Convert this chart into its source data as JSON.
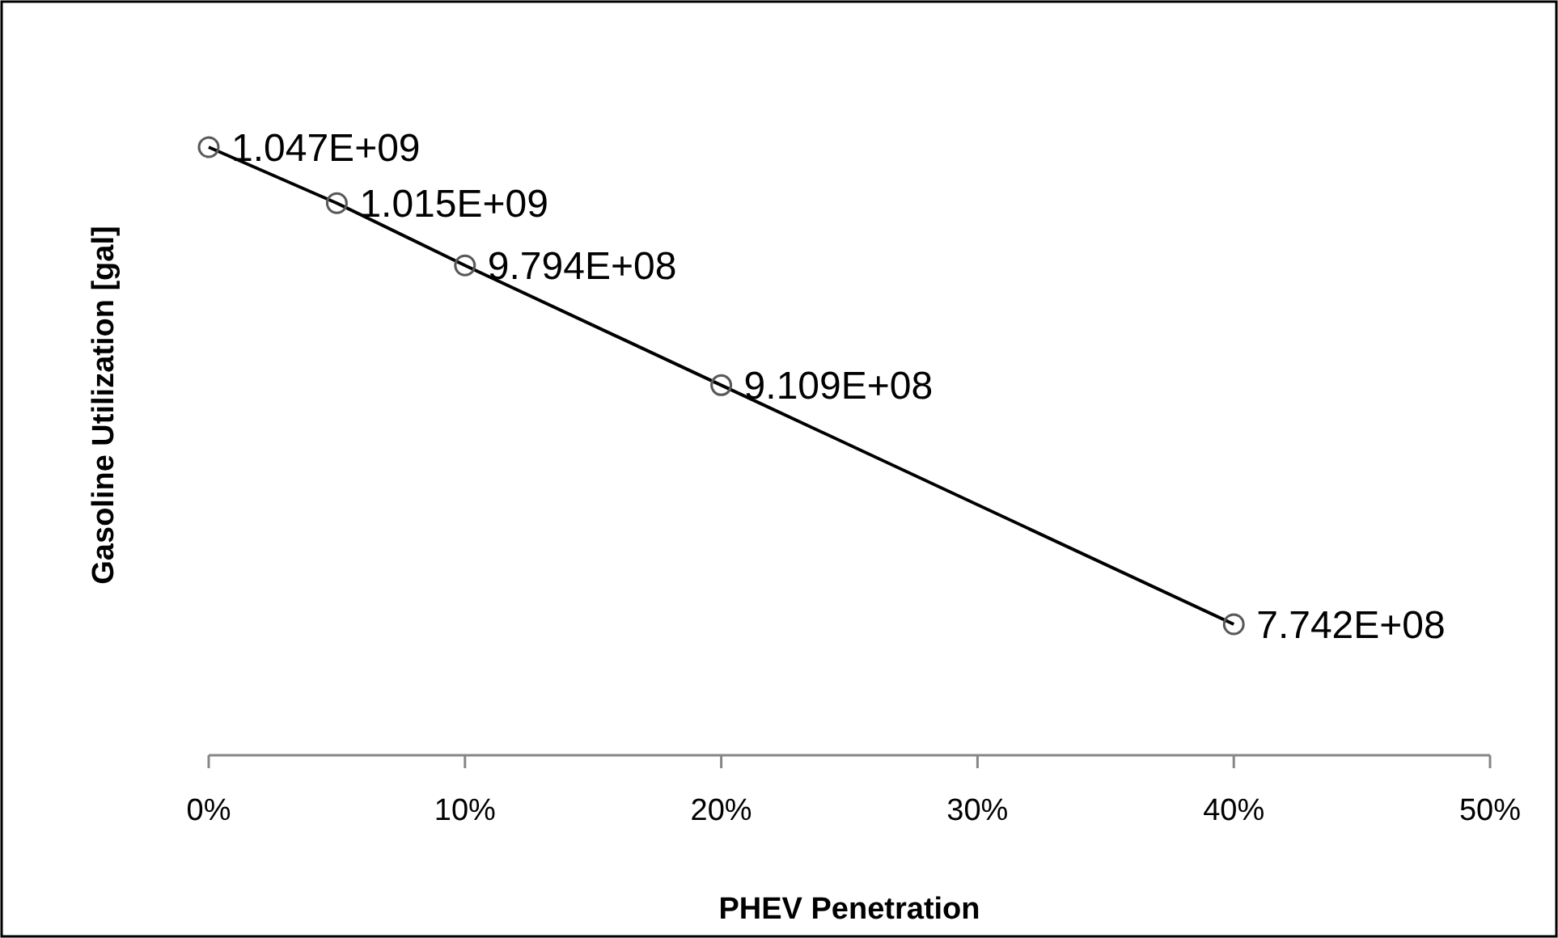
{
  "chart_data": {
    "type": "line",
    "xlabel": "PHEV Penetration",
    "ylabel": "Gasoline Utilization [gal]",
    "x": [
      0,
      5,
      10,
      20,
      40
    ],
    "series": [
      {
        "color": "#000000",
        "values": [
          1047000000,
          1015000000,
          979400000,
          910900000,
          774200000
        ],
        "value_labels": [
          "1.047E+09",
          "1.015E+09",
          "9.794E+08",
          "9.109E+08",
          "7.742E+08"
        ]
      }
    ],
    "xlim": [
      0,
      50
    ],
    "xticks": [
      {
        "value": 0,
        "label": "0%"
      },
      {
        "value": 10,
        "label": "10%"
      },
      {
        "value": 20,
        "label": "20%"
      },
      {
        "value": 30,
        "label": "30%"
      },
      {
        "value": 40,
        "label": "40%"
      },
      {
        "value": 50,
        "label": "50%"
      }
    ],
    "tick_labels": "x",
    "marker": "circle",
    "line_style": "solid"
  }
}
